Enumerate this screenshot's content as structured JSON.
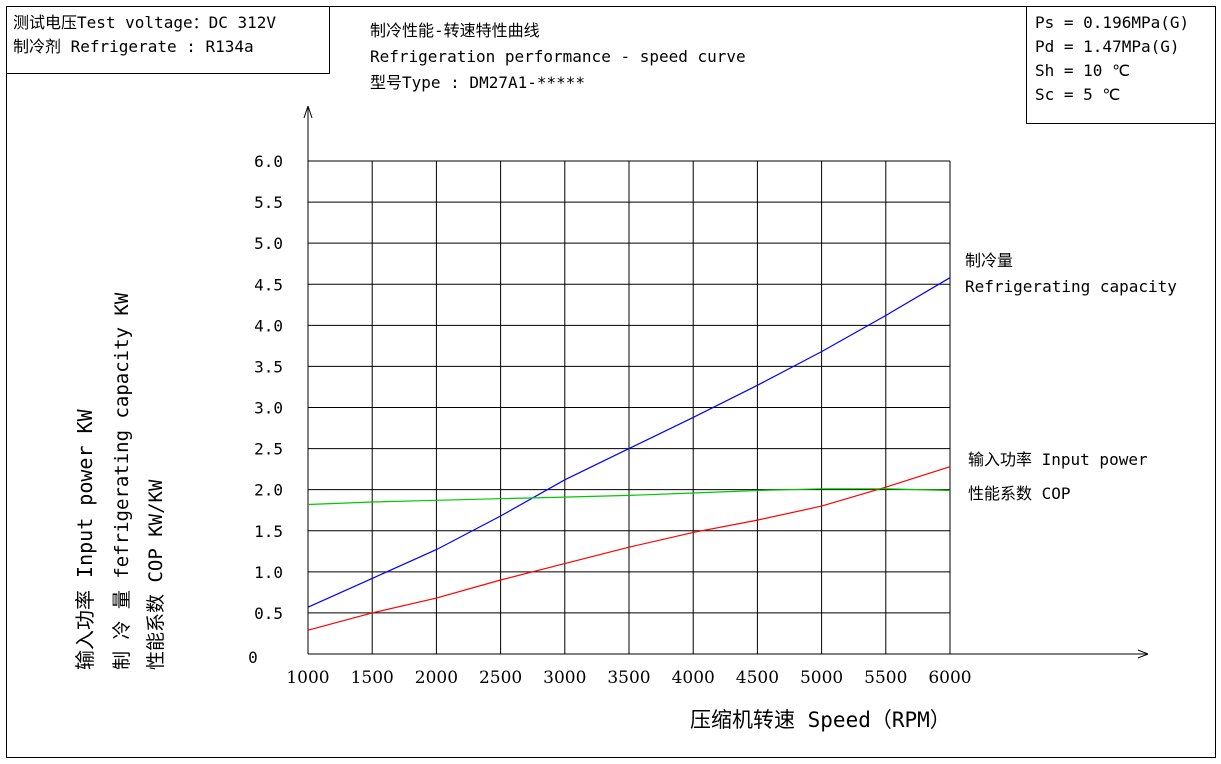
{
  "header": {
    "test_voltage": "测试电压Test voltage：DC 312V",
    "refrigerant": "制冷剂 Refrigerate : R134a"
  },
  "title": {
    "line1": "制冷性能-转速特性曲线",
    "line2": "Refrigeration performance - speed curve",
    "line3": "型号Type : DM27A1-*****"
  },
  "conditions": {
    "ps": "Ps = 0.196MPa(G)",
    "pd": "Pd = 1.47MPa(G)",
    "sh": "Sh = 10 ℃",
    "sc": "Sc = 5 ℃"
  },
  "chart_data": {
    "type": "line",
    "xlabel": "压缩机转速 Speed（RPM）",
    "ylabel_lines": [
      "输入功率 Input power  KW",
      "制 冷 量 fefrigerating capacity KW",
      "性能系数 COP  KW/KW"
    ],
    "x_ticks": [
      "1000",
      "1500",
      "2000",
      "2500",
      "3000",
      "3500",
      "4000",
      "4500",
      "5000",
      "5500",
      "6000"
    ],
    "y_ticks": [
      "0",
      "0.5",
      "1.0",
      "1.5",
      "2.0",
      "2.5",
      "3.0",
      "3.5",
      "4.0",
      "4.5",
      "5.0",
      "5.5",
      "6.0"
    ],
    "xlim": [
      1000,
      6000
    ],
    "ylim": [
      0,
      6
    ],
    "grid": true,
    "series": [
      {
        "name": "Refrigerating capacity",
        "label_lines": [
          "制冷量",
          "Refrigerating capacity"
        ],
        "color": "#0000ff",
        "x": [
          1000,
          1500,
          2000,
          2500,
          3000,
          3500,
          4000,
          4500,
          5000,
          5500,
          6000
        ],
        "y": [
          0.57,
          0.92,
          1.27,
          1.68,
          2.12,
          2.5,
          2.88,
          3.27,
          3.68,
          4.12,
          4.58
        ]
      },
      {
        "name": "Input power",
        "label_lines": [
          "输入功率  Input power"
        ],
        "color": "#ff0000",
        "x": [
          1000,
          1500,
          2000,
          2500,
          3000,
          3500,
          4000,
          4500,
          5000,
          5500,
          6000
        ],
        "y": [
          0.29,
          0.5,
          0.68,
          0.9,
          1.1,
          1.3,
          1.48,
          1.63,
          1.8,
          2.03,
          2.28
        ]
      },
      {
        "name": "COP",
        "label_lines": [
          "性能系数 COP"
        ],
        "color": "#00c800",
        "x": [
          1000,
          1500,
          2000,
          2500,
          3000,
          3500,
          4000,
          4500,
          5000,
          5500,
          6000
        ],
        "y": [
          1.82,
          1.85,
          1.87,
          1.89,
          1.91,
          1.93,
          1.96,
          1.99,
          2.01,
          2.01,
          1.99
        ]
      }
    ]
  }
}
